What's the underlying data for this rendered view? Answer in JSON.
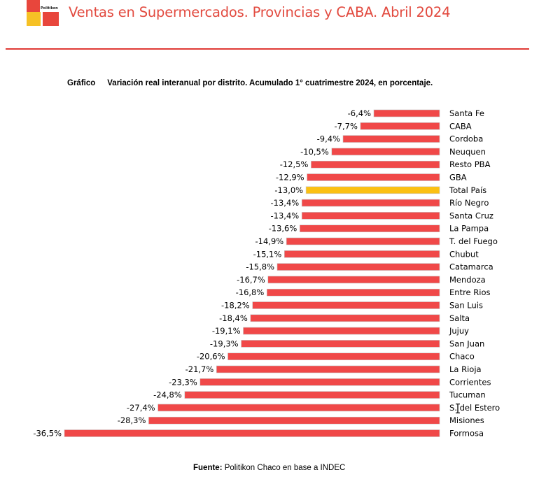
{
  "header": {
    "logo_text": "Politikon",
    "title": "Ventas en Supermercados. Provincias y CABA. Abril 2024"
  },
  "chart_data": {
    "type": "bar",
    "orientation": "horizontal",
    "label": "Gráfico",
    "title": "Variación real interanual por distrito. Acumulado 1° cuatrimestre 2024, en porcentaje.",
    "categories": [
      "Santa Fe",
      "CABA",
      "Cordoba",
      "Neuquen",
      "Resto PBA",
      "GBA",
      "Total País",
      "Río Negro",
      "Santa Cruz",
      "La Pampa",
      "T. del Fuego",
      "Chubut",
      "Catamarca",
      "Mendoza",
      "Entre Rios",
      "San Luis",
      "Salta",
      "Jujuy",
      "San Juan",
      "Chaco",
      "La Rioja",
      "Corrientes",
      "Tucuman",
      "S. del Estero",
      "Misiones",
      "Formosa"
    ],
    "values": [
      -6.4,
      -7.7,
      -9.4,
      -10.5,
      -12.5,
      -12.9,
      -13.0,
      -13.4,
      -13.4,
      -13.6,
      -14.9,
      -15.1,
      -15.8,
      -16.7,
      -16.8,
      -18.2,
      -18.4,
      -19.1,
      -19.3,
      -20.6,
      -21.7,
      -23.3,
      -24.8,
      -27.4,
      -28.3,
      -36.5
    ],
    "value_labels": [
      "-6,4%",
      "-7,7%",
      "-9,4%",
      "-10,5%",
      "-12,5%",
      "-12,9%",
      "-13,0%",
      "-13,4%",
      "-13,4%",
      "-13,6%",
      "-14,9%",
      "-15,1%",
      "-15,8%",
      "-16,7%",
      "-16,8%",
      "-18,2%",
      "-18,4%",
      "-19,1%",
      "-19,3%",
      "-20,6%",
      "-21,7%",
      "-23,3%",
      "-24,8%",
      "-27,4%",
      "-28,3%",
      "-36,5%"
    ],
    "highlight_category": "Total País",
    "colors": {
      "bar": "#f04848",
      "highlight": "#fbc012",
      "bar_border": "#c8c8c8"
    },
    "xlim": [
      -36.5,
      0
    ],
    "grid": false,
    "legend": "none"
  },
  "footer": {
    "source_label": "Fuente:",
    "source_text": "Politikon Chaco en base a INDEC"
  }
}
